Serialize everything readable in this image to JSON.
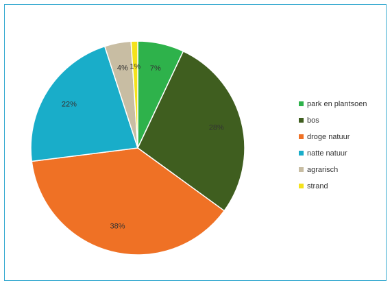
{
  "chart_data": {
    "type": "pie",
    "categories": [
      "park en plantsoen",
      "bos",
      "droge natuur",
      "natte natuur",
      "agrarisch",
      "strand"
    ],
    "values": [
      7,
      28,
      38,
      22,
      4,
      1
    ],
    "labels": [
      "7%",
      "28%",
      "38%",
      "22%",
      "4%",
      "1%"
    ],
    "colors": [
      "#2eb24b",
      "#3f5e1f",
      "#ef7125",
      "#19adc9",
      "#c8bda3",
      "#f4e21c"
    ],
    "legend_position": "right",
    "start_angle_deg": 0,
    "direction": "clockwise"
  }
}
